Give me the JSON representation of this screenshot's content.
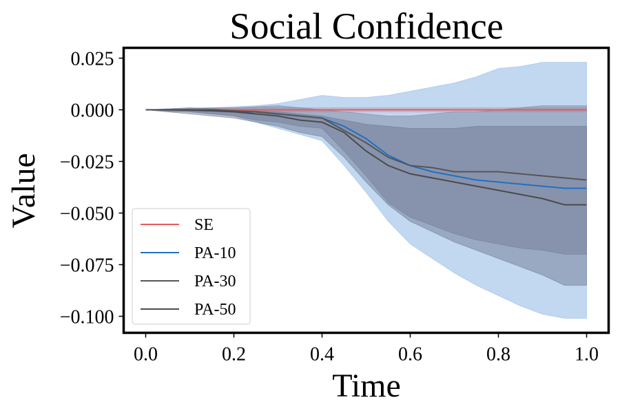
{
  "chart_data": {
    "type": "line",
    "title": "Social Confidence",
    "xlabel": "Time",
    "ylabel": "Value",
    "xlim": [
      -0.05,
      1.05
    ],
    "ylim": [
      -0.108,
      0.03
    ],
    "xticks": [
      0.0,
      0.2,
      0.4,
      0.6,
      0.8,
      1.0
    ],
    "xtick_labels": [
      "0.0",
      "0.2",
      "0.4",
      "0.6",
      "0.8",
      "1.0"
    ],
    "yticks": [
      0.025,
      0.0,
      -0.025,
      -0.05,
      -0.075,
      -0.1
    ],
    "ytick_labels": [
      "0.025",
      "0.000",
      "−0.025",
      "−0.050",
      "−0.075",
      "−0.100"
    ],
    "grid": false,
    "legend_position": "lower-left",
    "x": [
      0.0,
      0.05,
      0.1,
      0.15,
      0.2,
      0.25,
      0.3,
      0.35,
      0.4,
      0.45,
      0.5,
      0.55,
      0.6,
      0.65,
      0.7,
      0.75,
      0.8,
      0.85,
      0.9,
      0.95,
      1.0
    ],
    "series": [
      {
        "name": "SE",
        "color": "#e8595a",
        "values": [
          0.0,
          0.0,
          0.0,
          0.0,
          0.0,
          0.0,
          0.0,
          0.0,
          0.0,
          0.0,
          0.0,
          0.0,
          0.0,
          0.0,
          0.0,
          0.0,
          0.0,
          0.0,
          0.0,
          0.0,
          0.0
        ],
        "band_color": "#e8595a",
        "band_opacity": 0.3,
        "band_upper": [
          0.0,
          0.0,
          0.0,
          0.0005,
          0.0008,
          0.001,
          0.001,
          0.001,
          0.001,
          0.001,
          0.001,
          0.001,
          0.001,
          0.001,
          0.001,
          0.001,
          0.001,
          0.001,
          0.001,
          0.001,
          0.001
        ],
        "band_lower": [
          0.0,
          0.0,
          0.0,
          -0.0005,
          -0.0008,
          -0.001,
          -0.001,
          -0.001,
          -0.001,
          -0.001,
          -0.001,
          -0.001,
          -0.001,
          -0.001,
          -0.001,
          -0.001,
          -0.001,
          -0.001,
          -0.001,
          -0.001,
          -0.001
        ]
      },
      {
        "name": "PA-10",
        "color": "#1f6fc5",
        "values": [
          0.0,
          0.0,
          0.0,
          0.0,
          -0.001,
          -0.001,
          -0.002,
          -0.003,
          -0.004,
          -0.008,
          -0.014,
          -0.022,
          -0.027,
          -0.03,
          -0.032,
          -0.034,
          -0.035,
          -0.036,
          -0.037,
          -0.038,
          -0.038
        ],
        "band_color": "#8fb7e3",
        "band_opacity": 0.55,
        "band_upper": [
          0.0,
          0.0,
          0.0005,
          0.001,
          0.0015,
          0.002,
          0.003,
          0.005,
          0.007,
          0.006,
          0.006,
          0.007,
          0.009,
          0.011,
          0.013,
          0.016,
          0.02,
          0.021,
          0.023,
          0.023,
          0.023
        ],
        "band_lower": [
          0.0,
          -0.001,
          -0.001,
          -0.002,
          -0.003,
          -0.006,
          -0.009,
          -0.012,
          -0.015,
          -0.027,
          -0.04,
          -0.054,
          -0.065,
          -0.072,
          -0.079,
          -0.085,
          -0.09,
          -0.095,
          -0.099,
          -0.101,
          -0.101
        ]
      },
      {
        "name": "PA-30",
        "color": "#555555",
        "values": [
          0.0,
          0.0,
          0.0,
          0.0,
          -0.0005,
          -0.001,
          -0.002,
          -0.003,
          -0.004,
          -0.01,
          -0.016,
          -0.023,
          -0.027,
          -0.028,
          -0.03,
          -0.03,
          -0.03,
          -0.031,
          -0.032,
          -0.033,
          -0.034
        ],
        "band_color": "#77809a",
        "band_opacity": 0.45,
        "band_upper": [
          0.0,
          0.0003,
          0.0008,
          0.001,
          0.001,
          0.0015,
          0.002,
          0.001,
          0.0,
          -0.001,
          -0.002,
          -0.003,
          -0.003,
          -0.002,
          -0.001,
          -0.001,
          0.0,
          0.001,
          0.002,
          0.002,
          0.002
        ],
        "band_lower": [
          0.0,
          -0.0005,
          -0.001,
          -0.002,
          -0.003,
          -0.005,
          -0.006,
          -0.008,
          -0.009,
          -0.02,
          -0.032,
          -0.045,
          -0.052,
          -0.056,
          -0.06,
          -0.063,
          -0.065,
          -0.067,
          -0.068,
          -0.07,
          -0.07
        ]
      },
      {
        "name": "PA-50",
        "color": "#4a4a4a",
        "values": [
          0.0,
          0.0,
          -0.0002,
          -0.0005,
          -0.001,
          -0.002,
          -0.003,
          -0.005,
          -0.006,
          -0.011,
          -0.02,
          -0.027,
          -0.031,
          -0.033,
          -0.035,
          -0.037,
          -0.039,
          -0.041,
          -0.043,
          -0.046,
          -0.046
        ],
        "band_color": "#68718a",
        "band_opacity": 0.45,
        "band_upper": [
          0.0,
          0.0005,
          0.001,
          0.0005,
          0.0,
          -0.0005,
          -0.001,
          -0.002,
          -0.003,
          -0.005,
          -0.007,
          -0.008,
          -0.009,
          -0.009,
          -0.009,
          -0.008,
          -0.008,
          -0.008,
          -0.008,
          -0.008,
          -0.008
        ],
        "band_lower": [
          0.0,
          -0.001,
          -0.002,
          -0.003,
          -0.004,
          -0.006,
          -0.008,
          -0.011,
          -0.013,
          -0.023,
          -0.035,
          -0.046,
          -0.054,
          -0.059,
          -0.064,
          -0.068,
          -0.072,
          -0.076,
          -0.08,
          -0.085,
          -0.085
        ]
      }
    ]
  }
}
